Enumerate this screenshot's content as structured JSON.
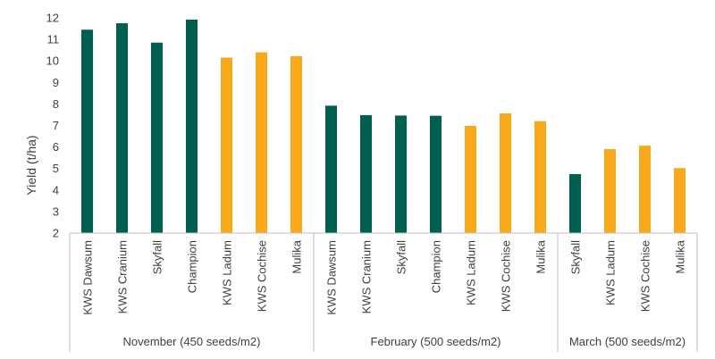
{
  "chart_data": {
    "type": "bar",
    "ylabel": "Yield (t/ha)",
    "ylim": [
      2,
      12
    ],
    "yticks": [
      "2",
      "3",
      "4",
      "5",
      "6",
      "7",
      "8",
      "9",
      "10",
      "11",
      "12"
    ],
    "grid": false,
    "colors": {
      "teal": "#00604f",
      "orange": "#f7a81b"
    },
    "groups": [
      {
        "label": "November (450 seeds/m2)",
        "bars": [
          {
            "category": "KWS Dawsum",
            "value": 11.45,
            "color": "teal"
          },
          {
            "category": "KWS Cranium",
            "value": 11.75,
            "color": "teal"
          },
          {
            "category": "Skyfall",
            "value": 10.85,
            "color": "teal"
          },
          {
            "category": "Champion",
            "value": 11.92,
            "color": "teal"
          },
          {
            "category": "KWS Ladum",
            "value": 10.15,
            "color": "orange"
          },
          {
            "category": "KWS Cochise",
            "value": 10.4,
            "color": "orange"
          },
          {
            "category": "Mulika",
            "value": 10.22,
            "color": "orange"
          }
        ]
      },
      {
        "label": "February (500 seeds/m2)",
        "bars": [
          {
            "category": "KWS Dawsum",
            "value": 7.92,
            "color": "teal"
          },
          {
            "category": "KWS Cranium",
            "value": 7.48,
            "color": "teal"
          },
          {
            "category": "Skyfall",
            "value": 7.46,
            "color": "teal"
          },
          {
            "category": "Champion",
            "value": 7.45,
            "color": "teal"
          },
          {
            "category": "KWS Ladum",
            "value": 6.98,
            "color": "orange"
          },
          {
            "category": "KWS Cochise",
            "value": 7.56,
            "color": "orange"
          },
          {
            "category": "Mulika",
            "value": 7.2,
            "color": "orange"
          }
        ]
      },
      {
        "label": "March (500 seeds/m2)",
        "bars": [
          {
            "category": "Skyfall",
            "value": 4.74,
            "color": "teal"
          },
          {
            "category": "KWS Ladum",
            "value": 5.9,
            "color": "orange"
          },
          {
            "category": "KWS Cochise",
            "value": 6.06,
            "color": "orange"
          },
          {
            "category": "Mulika",
            "value": 5.02,
            "color": "orange"
          }
        ]
      }
    ]
  }
}
